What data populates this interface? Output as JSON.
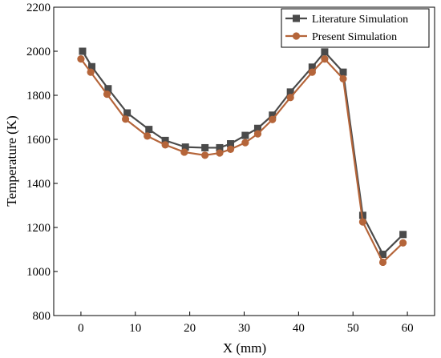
{
  "chart_data": {
    "type": "line",
    "xlabel": "X (mm)",
    "ylabel": "Temperature (K)",
    "xlim": [
      -5,
      65
    ],
    "ylim": [
      800,
      2200
    ],
    "x_ticks": [
      0,
      10,
      20,
      30,
      40,
      50,
      60
    ],
    "y_ticks": [
      800,
      1000,
      1200,
      1400,
      1600,
      1800,
      2000,
      2200
    ],
    "grid": false,
    "legend_position": "top-right",
    "series": [
      {
        "name": "Literature Simulation",
        "color": "#4a4a4a",
        "marker": "square",
        "x": [
          0.3,
          2.0,
          5.0,
          8.5,
          12.5,
          15.5,
          19.2,
          22.8,
          25.5,
          27.5,
          30.2,
          32.5,
          35.2,
          38.5,
          42.5,
          44.8,
          48.2,
          51.8,
          55.5,
          59.2
        ],
        "y": [
          2000,
          1930,
          1830,
          1720,
          1645,
          1595,
          1565,
          1562,
          1562,
          1580,
          1618,
          1650,
          1710,
          1815,
          1928,
          1997,
          1905,
          1255,
          1078,
          1168
        ]
      },
      {
        "name": "Present Simulation",
        "color": "#b5653a",
        "marker": "circle",
        "x": [
          0.0,
          1.8,
          4.8,
          8.2,
          12.2,
          15.5,
          19.0,
          22.8,
          25.5,
          27.5,
          30.2,
          32.5,
          35.2,
          38.5,
          42.5,
          44.8,
          48.2,
          51.8,
          55.5,
          59.2
        ],
        "y": [
          1965,
          1905,
          1805,
          1692,
          1615,
          1575,
          1542,
          1528,
          1538,
          1555,
          1585,
          1625,
          1690,
          1790,
          1905,
          1965,
          1875,
          1225,
          1042,
          1130
        ]
      }
    ]
  }
}
